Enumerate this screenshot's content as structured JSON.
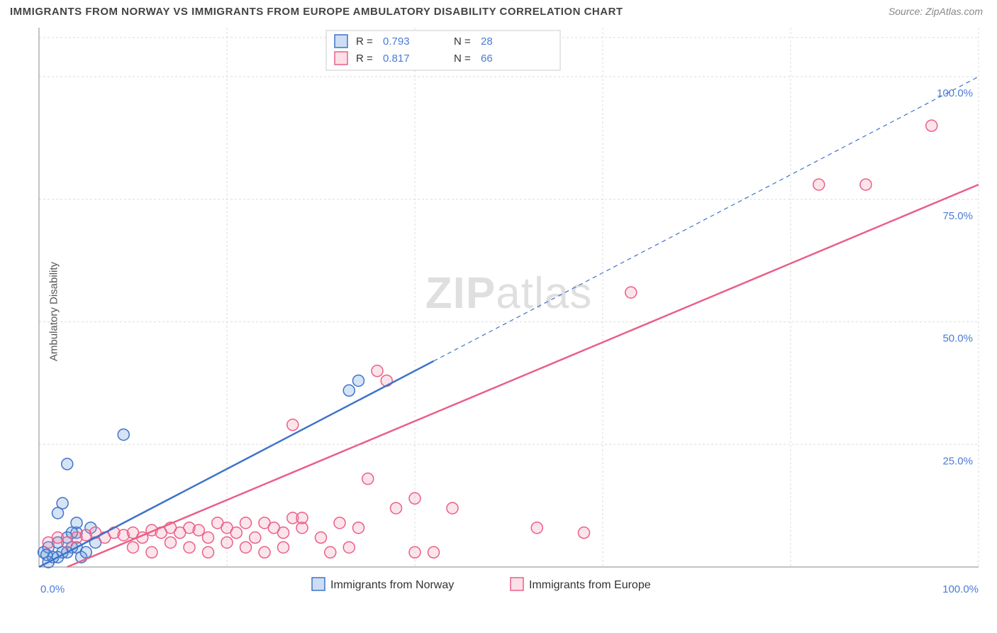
{
  "title": "IMMIGRANTS FROM NORWAY VS IMMIGRANTS FROM EUROPE AMBULATORY DISABILITY CORRELATION CHART",
  "source_label": "Source: ",
  "source_site": "ZipAtlas.com",
  "ylabel": "Ambulatory Disability",
  "watermark_bold": "ZIP",
  "watermark_rest": "atlas",
  "chart": {
    "type": "scatter",
    "xlim": [
      0,
      100
    ],
    "ylim": [
      0,
      110
    ],
    "xtick_labels": [
      "0.0%",
      "100.0%"
    ],
    "xtick_pos": [
      0,
      100
    ],
    "ytick_labels": [
      "25.0%",
      "50.0%",
      "75.0%",
      "100.0%"
    ],
    "ytick_pos": [
      25,
      50,
      75,
      100
    ],
    "grid_color": "#dcdcdc",
    "background_color": "#ffffff",
    "blue": "#5b8ed6",
    "blue_stroke": "#3e73c9",
    "pink": "#f495af",
    "pink_stroke": "#ea5f87",
    "tick_label_color": "#4a7bd8",
    "marker_radius": 8,
    "series": [
      {
        "name": "Immigrants from Norway",
        "color_key": "blue",
        "R": "0.793",
        "N": "28",
        "trend_solid": {
          "x1": 0,
          "y1": 0,
          "x2": 42,
          "y2": 42
        },
        "trend_dash": {
          "x1": 42,
          "y1": 42,
          "x2": 100,
          "y2": 100
        },
        "points": [
          [
            0.5,
            3
          ],
          [
            1,
            4
          ],
          [
            1.5,
            2
          ],
          [
            2,
            5
          ],
          [
            2.5,
            3
          ],
          [
            3,
            6
          ],
          [
            3.5,
            4
          ],
          [
            4,
            7
          ],
          [
            4.5,
            2
          ],
          [
            5,
            3
          ],
          [
            5.5,
            8
          ],
          [
            6,
            5
          ],
          [
            1,
            1
          ],
          [
            2,
            2
          ],
          [
            3,
            3
          ],
          [
            4,
            4
          ],
          [
            0.8,
            2.5
          ],
          [
            2,
            11
          ],
          [
            2.5,
            13
          ],
          [
            3,
            21
          ],
          [
            9,
            27
          ],
          [
            3.5,
            7
          ],
          [
            4,
            9
          ],
          [
            33,
            36
          ],
          [
            34,
            38
          ]
        ]
      },
      {
        "name": "Immigrants from Europe",
        "color_key": "pink",
        "R": "0.817",
        "N": "66",
        "trend_solid": {
          "x1": 3,
          "y1": 0,
          "x2": 100,
          "y2": 78
        },
        "trend_dash": null,
        "points": [
          [
            1,
            5
          ],
          [
            2,
            6
          ],
          [
            3,
            5
          ],
          [
            4,
            6
          ],
          [
            5,
            6.5
          ],
          [
            6,
            7
          ],
          [
            7,
            6
          ],
          [
            8,
            7
          ],
          [
            9,
            6.5
          ],
          [
            10,
            7
          ],
          [
            11,
            6
          ],
          [
            12,
            7.5
          ],
          [
            13,
            7
          ],
          [
            14,
            8
          ],
          [
            15,
            7
          ],
          [
            16,
            8
          ],
          [
            17,
            7.5
          ],
          [
            18,
            6
          ],
          [
            19,
            9
          ],
          [
            20,
            8
          ],
          [
            21,
            7
          ],
          [
            22,
            9
          ],
          [
            23,
            6
          ],
          [
            24,
            9
          ],
          [
            25,
            8
          ],
          [
            26,
            7
          ],
          [
            27,
            10
          ],
          [
            28,
            8
          ],
          [
            10,
            4
          ],
          [
            12,
            3
          ],
          [
            14,
            5
          ],
          [
            16,
            4
          ],
          [
            18,
            3
          ],
          [
            20,
            5
          ],
          [
            22,
            4
          ],
          [
            24,
            3
          ],
          [
            26,
            4
          ],
          [
            28,
            10
          ],
          [
            30,
            6
          ],
          [
            31,
            3
          ],
          [
            32,
            9
          ],
          [
            33,
            4
          ],
          [
            34,
            8
          ],
          [
            35,
            18
          ],
          [
            36,
            40
          ],
          [
            37,
            38
          ],
          [
            38,
            12
          ],
          [
            40,
            14
          ],
          [
            42,
            3
          ],
          [
            44,
            12
          ],
          [
            53,
            8
          ],
          [
            58,
            7
          ],
          [
            63,
            56
          ],
          [
            27,
            29
          ],
          [
            40,
            3
          ],
          [
            83,
            78
          ],
          [
            88,
            78
          ],
          [
            95,
            90
          ]
        ]
      }
    ]
  },
  "legend_top": {
    "R_label": "R =",
    "N_label": "N ="
  },
  "legend_bottom": {
    "items": [
      "Immigrants from Norway",
      "Immigrants from Europe"
    ]
  }
}
